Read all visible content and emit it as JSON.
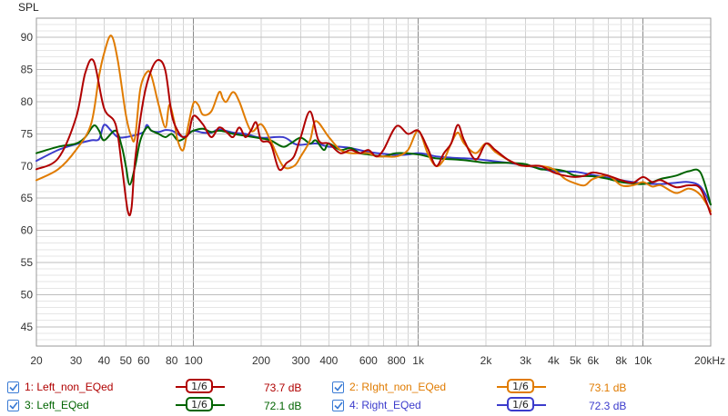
{
  "chart_data": {
    "type": "line",
    "ylabel": "SPL",
    "xscale": "log",
    "xlim": [
      20,
      20000
    ],
    "ylim": [
      42,
      93
    ],
    "x_ticks": [
      {
        "v": 20,
        "label": "20"
      },
      {
        "v": 30,
        "label": "30"
      },
      {
        "v": 40,
        "label": "40"
      },
      {
        "v": 50,
        "label": "50"
      },
      {
        "v": 60,
        "label": "60"
      },
      {
        "v": 80,
        "label": "80"
      },
      {
        "v": 100,
        "label": "100"
      },
      {
        "v": 200,
        "label": "200"
      },
      {
        "v": 300,
        "label": "300"
      },
      {
        "v": 400,
        "label": "400"
      },
      {
        "v": 600,
        "label": "600"
      },
      {
        "v": 800,
        "label": "800"
      },
      {
        "v": 1000,
        "label": "1k"
      },
      {
        "v": 2000,
        "label": "2k"
      },
      {
        "v": 3000,
        "label": "3k"
      },
      {
        "v": 4000,
        "label": "4k"
      },
      {
        "v": 5000,
        "label": "5k"
      },
      {
        "v": 6000,
        "label": "6k"
      },
      {
        "v": 8000,
        "label": "8k"
      },
      {
        "v": 10000,
        "label": "10k"
      },
      {
        "v": 20000,
        "label": "20kHz"
      }
    ],
    "y_ticks": [
      45,
      50,
      55,
      60,
      65,
      70,
      75,
      80,
      85,
      90
    ],
    "grid": true,
    "series": [
      {
        "name": "1: Left_non_EQed",
        "color": "#b00000",
        "smoothing": "1/6",
        "average": "73.7 dB",
        "x": [
          20,
          25,
          30,
          33,
          36,
          40,
          45,
          48,
          51,
          53,
          55,
          60,
          65,
          70,
          75,
          80,
          85,
          90,
          95,
          100,
          110,
          120,
          130,
          140,
          150,
          160,
          170,
          180,
          190,
          200,
          220,
          240,
          260,
          280,
          300,
          330,
          360,
          400,
          450,
          500,
          550,
          600,
          650,
          700,
          800,
          900,
          1000,
          1100,
          1200,
          1300,
          1400,
          1500,
          1600,
          1800,
          2000,
          2200,
          2500,
          2800,
          3000,
          3500,
          4000,
          4500,
          5000,
          5500,
          6000,
          7000,
          8000,
          9000,
          10000,
          11000,
          12000,
          14000,
          16000,
          18000,
          20000
        ],
        "y": [
          69.5,
          71.2,
          77.5,
          84.5,
          86.3,
          79,
          76.5,
          70,
          63,
          63.5,
          71,
          80.5,
          85,
          86.5,
          84.8,
          78,
          75.5,
          74.5,
          75,
          77.8,
          76.5,
          74.5,
          76,
          75.3,
          74.5,
          76,
          74.5,
          75.5,
          76.8,
          74,
          73.5,
          69.5,
          70.5,
          71.5,
          74.5,
          78.5,
          74,
          73.5,
          72,
          72.5,
          72,
          72.5,
          71.5,
          72.5,
          76.2,
          75,
          75.5,
          72.8,
          70,
          72,
          73.5,
          76.4,
          74,
          71,
          73.5,
          72.5,
          71,
          70.2,
          70,
          70,
          69,
          68.5,
          68.3,
          68.5,
          69,
          68.5,
          67.8,
          67.4,
          68.3,
          67.5,
          67.8,
          66.7,
          67,
          66.5,
          62.5
        ]
      },
      {
        "name": "2: RIght_non_EQed",
        "color": "#e07b00",
        "smoothing": "1/6",
        "average": "73.1 dB",
        "x": [
          20,
          25,
          30,
          35,
          38,
          40,
          43,
          46,
          50,
          53,
          55,
          58,
          62,
          65,
          70,
          75,
          78,
          82,
          85,
          90,
          95,
          100,
          105,
          110,
          120,
          130,
          135,
          140,
          150,
          160,
          180,
          200,
          220,
          250,
          280,
          300,
          330,
          350,
          400,
          450,
          500,
          550,
          600,
          650,
          700,
          800,
          900,
          1000,
          1100,
          1200,
          1300,
          1400,
          1500,
          1600,
          1800,
          2000,
          2200,
          2500,
          2800,
          3000,
          3500,
          4000,
          4500,
          5000,
          5500,
          6000,
          7000,
          8000,
          9000,
          10000,
          11000,
          12000,
          14000,
          16000,
          18000,
          20000
        ],
        "y": [
          67.8,
          69.5,
          72.5,
          76.5,
          84,
          87.5,
          90.3,
          86.5,
          78,
          74.5,
          74.5,
          82,
          84.6,
          84,
          79.5,
          76,
          79.5,
          77,
          74,
          72.5,
          76.5,
          79.8,
          79.5,
          78,
          78.5,
          81.5,
          80.5,
          80,
          81.5,
          80,
          75.5,
          76.5,
          74,
          70,
          70,
          71.5,
          74,
          77,
          74.5,
          72.5,
          72,
          72,
          72,
          71.5,
          71.5,
          71.5,
          72.5,
          75.5,
          72,
          70,
          71,
          73.5,
          75.2,
          73.5,
          72,
          73.5,
          72.2,
          71,
          70.2,
          70,
          70,
          69.5,
          68,
          67.3,
          67,
          68,
          68.5,
          67,
          67,
          67.5,
          66.8,
          67,
          65.8,
          66.5,
          65.5,
          63
        ]
      },
      {
        "name": "3: Left_EQed",
        "color": "#006400",
        "smoothing": "1/6",
        "average": "72.1 dB",
        "x": [
          20,
          25,
          30,
          33,
          36,
          38,
          40,
          45,
          48,
          50,
          52,
          55,
          58,
          62,
          65,
          70,
          75,
          80,
          85,
          90,
          95,
          100,
          110,
          120,
          130,
          140,
          150,
          170,
          200,
          220,
          250,
          270,
          300,
          330,
          350,
          380,
          400,
          450,
          500,
          550,
          600,
          700,
          800,
          1000,
          1200,
          1500,
          1800,
          2000,
          2500,
          3000,
          3500,
          4000,
          4500,
          5000,
          6000,
          7000,
          8000,
          9000,
          10000,
          11000,
          12000,
          14000,
          16000,
          18000,
          20000
        ],
        "y": [
          72,
          73,
          73.5,
          74.5,
          76.3,
          75.5,
          74,
          75.5,
          73,
          70,
          67.1,
          70,
          74,
          76,
          75.5,
          75,
          74.5,
          75,
          74,
          74.2,
          75,
          75.5,
          75.8,
          75.3,
          75.5,
          75.3,
          75,
          74.7,
          74.3,
          74,
          73,
          73.5,
          74.4,
          73.5,
          74,
          72.5,
          73.5,
          72.5,
          72.8,
          72,
          71.8,
          71.5,
          72,
          71.8,
          71.2,
          71,
          70.7,
          70.5,
          70.5,
          70.3,
          69.5,
          69.5,
          69.2,
          68.5,
          68.4,
          68,
          67.5,
          67.3,
          67.2,
          67.5,
          68,
          68.5,
          69.2,
          69,
          64
        ]
      },
      {
        "name": "4: Right_EQed",
        "color": "#3b3bcc",
        "smoothing": "1/6",
        "average": "72.3 dB",
        "x": [
          20,
          25,
          30,
          35,
          38,
          40,
          43,
          46,
          50,
          55,
          60,
          62,
          65,
          70,
          75,
          80,
          85,
          90,
          95,
          100,
          110,
          120,
          130,
          150,
          170,
          200,
          250,
          280,
          300,
          350,
          400,
          450,
          500,
          600,
          700,
          800,
          900,
          1000,
          1100,
          1200,
          1400,
          1600,
          1800,
          2000,
          2500,
          3000,
          3500,
          4000,
          5000,
          6000,
          7000,
          8000,
          10000,
          12000,
          14000,
          16000,
          18000,
          20000
        ],
        "y": [
          70.8,
          72.5,
          73.4,
          74,
          74.2,
          76.4,
          75.5,
          74.5,
          74.5,
          74.8,
          75.3,
          76.4,
          75.5,
          75.3,
          75.6,
          75.5,
          75,
          74.5,
          75,
          75.5,
          75.2,
          75.2,
          75.7,
          75.2,
          75,
          74.4,
          74.5,
          73.5,
          73.3,
          73.5,
          73,
          73,
          72.8,
          72.2,
          71.9,
          71.7,
          71.8,
          72,
          71.8,
          71.5,
          71.3,
          71.2,
          71.1,
          70.9,
          70.5,
          70.1,
          69.6,
          69.2,
          69.1,
          68.6,
          68.2,
          67.8,
          67.3,
          67.2,
          67.4,
          67.5,
          66.8,
          64
        ]
      }
    ]
  },
  "legend": {
    "items": [
      {
        "check": "checked",
        "label": "1: Left_non_EQed",
        "smoothing": "1/6",
        "average": "73.7 dB",
        "color": "#b00000"
      },
      {
        "check": "checked",
        "label": "2: RIght_non_EQed",
        "smoothing": "1/6",
        "average": "73.1 dB",
        "color": "#e07b00"
      },
      {
        "check": "checked",
        "label": "3: Left_EQed",
        "smoothing": "1/6",
        "average": "72.1 dB",
        "color": "#006400"
      },
      {
        "check": "checked",
        "label": "4: Right_EQed",
        "smoothing": "1/6",
        "average": "72.3 dB",
        "color": "#3b3bcc"
      }
    ]
  },
  "colors": {
    "grid": "#d2d2d2",
    "grid_major": "#8a8a8a",
    "axis_text": "#333333",
    "checkbox": "#3a7bd5"
  }
}
